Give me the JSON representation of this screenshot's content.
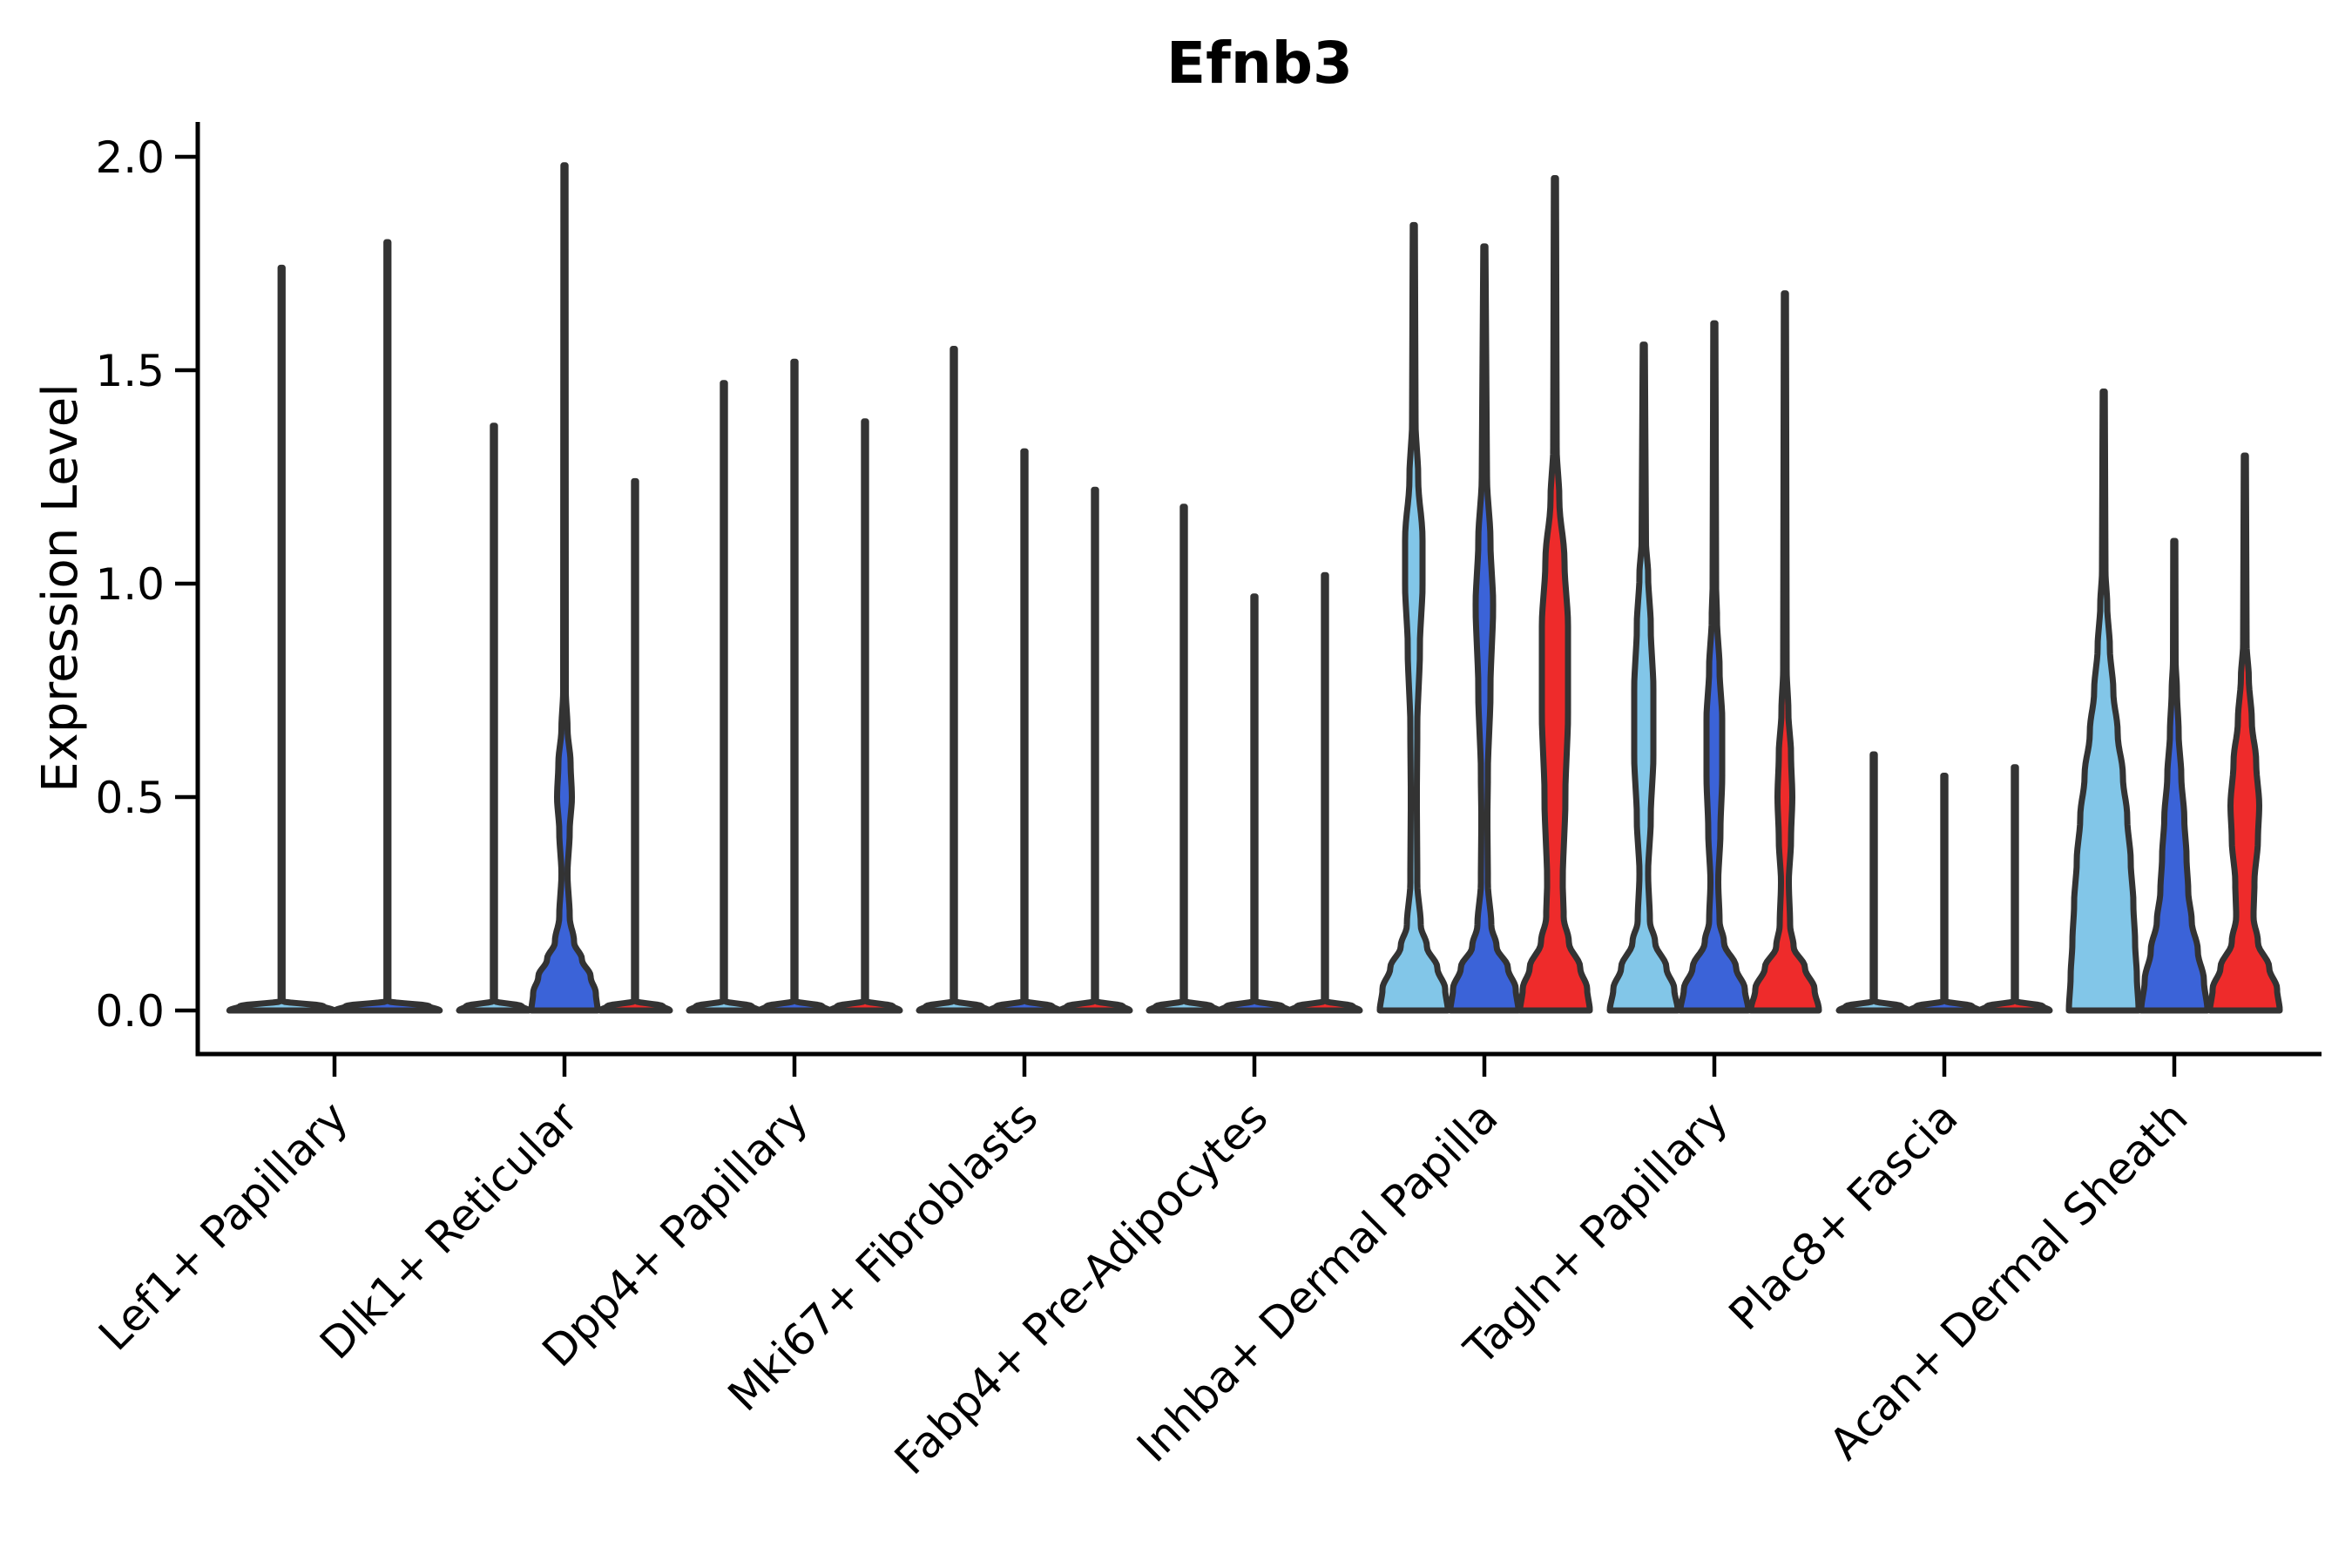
{
  "chart_data": {
    "type": "violin",
    "title": "Efnb3",
    "ylabel": "Expression Level",
    "xlabel": "",
    "y_ticks": [
      "0.0",
      "0.5",
      "1.0",
      "1.5",
      "2.0"
    ],
    "y_tick_values": [
      0.0,
      0.5,
      1.0,
      1.5,
      2.0
    ],
    "ylim": [
      -0.1,
      2.08
    ],
    "grid": "off",
    "legend": "none",
    "series_colors": [
      "#82C6E8",
      "#3B63D8",
      "#EE2B2B"
    ],
    "outline_color": "#333333",
    "axis_color": "#000000",
    "categories": [
      "Lef1+ Papillary",
      "Dlk1+ Reticular",
      "Dpp4+ Papillary",
      "Mki67+ Fibroblasts",
      "Fabp4+ Pre-Adipocytes",
      "Inhba+ Dermal Papilla",
      "Tagln+ Papillary",
      "Plac8+ Fascia",
      "Acan+ Dermal Sheath"
    ],
    "groups": [
      {
        "label": "Lef1+ Papillary",
        "violins": [
          {
            "series": 0,
            "max": 1.74,
            "hw": 60,
            "body": []
          },
          {
            "series": 1,
            "max": 1.8,
            "hw": 60,
            "body": []
          }
        ]
      },
      {
        "label": "Dlk1+ Reticular",
        "violins": [
          {
            "series": 0,
            "max": 1.37,
            "body": []
          },
          {
            "series": 1,
            "max": 1.98,
            "body": [
              [
                0,
                38
              ],
              [
                0.04,
                36
              ],
              [
                0.08,
                30
              ],
              [
                0.12,
                20
              ],
              [
                0.16,
                11
              ],
              [
                0.22,
                6
              ],
              [
                0.32,
                3.5
              ],
              [
                0.42,
                6
              ],
              [
                0.5,
                8.5
              ],
              [
                0.58,
                7
              ],
              [
                0.66,
                3.5
              ],
              [
                0.75,
                1.5
              ]
            ]
          },
          {
            "series": 2,
            "max": 1.24,
            "body": []
          }
        ]
      },
      {
        "label": "Dpp4+ Papillary",
        "violins": [
          {
            "series": 0,
            "max": 1.47,
            "body": []
          },
          {
            "series": 1,
            "max": 1.52,
            "body": []
          },
          {
            "series": 2,
            "max": 1.38,
            "body": []
          }
        ]
      },
      {
        "label": "Mki67+ Fibroblasts",
        "violins": [
          {
            "series": 0,
            "max": 1.55,
            "body": []
          },
          {
            "series": 1,
            "max": 1.31,
            "body": []
          },
          {
            "series": 2,
            "max": 1.22,
            "body": []
          }
        ]
      },
      {
        "label": "Fabp4+ Pre-Adipocytes",
        "violins": [
          {
            "series": 0,
            "max": 1.18,
            "body": []
          },
          {
            "series": 1,
            "max": 0.97,
            "body": []
          },
          {
            "series": 2,
            "max": 1.02,
            "body": []
          }
        ]
      },
      {
        "label": "Inhba+ Dermal Papilla",
        "violins": [
          {
            "series": 0,
            "max": 1.84,
            "body": [
              [
                0,
                39
              ],
              [
                0.05,
                36
              ],
              [
                0.1,
                27
              ],
              [
                0.15,
                15
              ],
              [
                0.2,
                8
              ],
              [
                0.3,
                4
              ],
              [
                0.5,
                3.5
              ],
              [
                0.66,
                4
              ],
              [
                0.85,
                7
              ],
              [
                1.0,
                10
              ],
              [
                1.1,
                10
              ],
              [
                1.25,
                5
              ],
              [
                1.38,
                2
              ]
            ]
          },
          {
            "series": 1,
            "max": 1.79,
            "body": [
              [
                0,
                39
              ],
              [
                0.05,
                36
              ],
              [
                0.1,
                27
              ],
              [
                0.15,
                14
              ],
              [
                0.2,
                8
              ],
              [
                0.3,
                4
              ],
              [
                0.45,
                3.5
              ],
              [
                0.55,
                4
              ],
              [
                0.75,
                7
              ],
              [
                0.95,
                10
              ],
              [
                1.1,
                7
              ],
              [
                1.25,
                3
              ]
            ]
          },
          {
            "series": 2,
            "max": 1.95,
            "body": [
              [
                0,
                40
              ],
              [
                0.05,
                37
              ],
              [
                0.1,
                29
              ],
              [
                0.16,
                16
              ],
              [
                0.22,
                10
              ],
              [
                0.3,
                9
              ],
              [
                0.5,
                12
              ],
              [
                0.7,
                15
              ],
              [
                0.9,
                15
              ],
              [
                1.05,
                11
              ],
              [
                1.2,
                5
              ],
              [
                1.32,
                2
              ]
            ]
          }
        ]
      },
      {
        "label": "Tagln+ Papillary",
        "violins": [
          {
            "series": 0,
            "max": 1.56,
            "body": [
              [
                0,
                39
              ],
              [
                0.05,
                35
              ],
              [
                0.1,
                26
              ],
              [
                0.16,
                13
              ],
              [
                0.21,
                7
              ],
              [
                0.32,
                5
              ],
              [
                0.45,
                8
              ],
              [
                0.6,
                11
              ],
              [
                0.75,
                11
              ],
              [
                0.9,
                8
              ],
              [
                1.02,
                5
              ],
              [
                1.1,
                2.5
              ]
            ]
          },
          {
            "series": 1,
            "max": 1.61,
            "body": [
              [
                0,
                39
              ],
              [
                0.05,
                35
              ],
              [
                0.1,
                25
              ],
              [
                0.16,
                11
              ],
              [
                0.21,
                6
              ],
              [
                0.3,
                4.5
              ],
              [
                0.42,
                7
              ],
              [
                0.55,
                9
              ],
              [
                0.68,
                9
              ],
              [
                0.8,
                6
              ],
              [
                0.92,
                3
              ],
              [
                1.0,
                2
              ]
            ]
          },
          {
            "series": 2,
            "max": 1.68,
            "body": [
              [
                0,
                39
              ],
              [
                0.05,
                34
              ],
              [
                0.1,
                23
              ],
              [
                0.15,
                10
              ],
              [
                0.2,
                6
              ],
              [
                0.3,
                4.5
              ],
              [
                0.4,
                7
              ],
              [
                0.5,
                8.5
              ],
              [
                0.6,
                7
              ],
              [
                0.7,
                4
              ],
              [
                0.8,
                2
              ]
            ]
          }
        ]
      },
      {
        "label": "Plac8+ Fascia",
        "violins": [
          {
            "series": 0,
            "max": 0.6,
            "body": []
          },
          {
            "series": 1,
            "max": 0.55,
            "body": []
          },
          {
            "series": 2,
            "max": 0.57,
            "body": []
          }
        ]
      },
      {
        "label": "Acan+ Dermal Sheath",
        "violins": [
          {
            "series": 0,
            "max": 1.45,
            "body": [
              [
                0,
                40
              ],
              [
                0.08,
                38
              ],
              [
                0.16,
                36
              ],
              [
                0.25,
                34
              ],
              [
                0.35,
                31
              ],
              [
                0.45,
                27
              ],
              [
                0.55,
                22
              ],
              [
                0.65,
                16
              ],
              [
                0.75,
                11
              ],
              [
                0.85,
                7
              ],
              [
                0.95,
                4
              ],
              [
                1.03,
                2
              ]
            ]
          },
          {
            "series": 1,
            "max": 1.1,
            "body": [
              [
                0,
                38
              ],
              [
                0.07,
                34
              ],
              [
                0.14,
                27
              ],
              [
                0.21,
                20
              ],
              [
                0.28,
                16
              ],
              [
                0.36,
                14
              ],
              [
                0.45,
                11.5
              ],
              [
                0.55,
                8
              ],
              [
                0.65,
                5
              ],
              [
                0.75,
                3
              ],
              [
                0.82,
                1.5
              ]
            ]
          },
          {
            "series": 2,
            "max": 1.3,
            "body": [
              [
                0,
                40
              ],
              [
                0.05,
                37
              ],
              [
                0.1,
                28
              ],
              [
                0.16,
                15
              ],
              [
                0.22,
                10
              ],
              [
                0.3,
                11
              ],
              [
                0.4,
                15
              ],
              [
                0.48,
                16.5
              ],
              [
                0.58,
                13
              ],
              [
                0.68,
                8
              ],
              [
                0.78,
                4.5
              ],
              [
                0.86,
                2
              ]
            ]
          }
        ]
      }
    ]
  }
}
